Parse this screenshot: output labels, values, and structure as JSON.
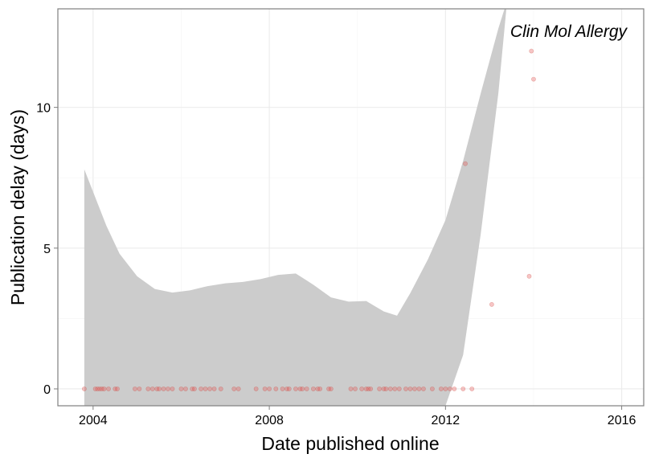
{
  "chart_data": {
    "type": "scatter",
    "title": "",
    "annotation": "Clin Mol Allergy",
    "xlabel": "Date published online",
    "ylabel": "Publication delay (days)",
    "xlim": [
      2003.2,
      2016.5
    ],
    "ylim": [
      -0.6,
      13.5
    ],
    "x_ticks": [
      2004,
      2008,
      2012,
      2016
    ],
    "y_ticks": [
      0,
      5,
      10
    ],
    "grid": true,
    "point_color": "#e8585a",
    "band_color": "#cccccc",
    "points": [
      {
        "x": 2003.8,
        "y": 0
      },
      {
        "x": 2004.05,
        "y": 0
      },
      {
        "x": 2004.1,
        "y": 0
      },
      {
        "x": 2004.15,
        "y": 0
      },
      {
        "x": 2004.2,
        "y": 0
      },
      {
        "x": 2004.25,
        "y": 0
      },
      {
        "x": 2004.35,
        "y": 0
      },
      {
        "x": 2004.5,
        "y": 0
      },
      {
        "x": 2004.55,
        "y": 0
      },
      {
        "x": 2004.95,
        "y": 0
      },
      {
        "x": 2005.05,
        "y": 0
      },
      {
        "x": 2005.25,
        "y": 0
      },
      {
        "x": 2005.35,
        "y": 0
      },
      {
        "x": 2005.45,
        "y": 0
      },
      {
        "x": 2005.5,
        "y": 0
      },
      {
        "x": 2005.6,
        "y": 0
      },
      {
        "x": 2005.7,
        "y": 0
      },
      {
        "x": 2005.8,
        "y": 0
      },
      {
        "x": 2006.0,
        "y": 0
      },
      {
        "x": 2006.1,
        "y": 0
      },
      {
        "x": 2006.25,
        "y": 0
      },
      {
        "x": 2006.3,
        "y": 0
      },
      {
        "x": 2006.45,
        "y": 0
      },
      {
        "x": 2006.55,
        "y": 0
      },
      {
        "x": 2006.65,
        "y": 0
      },
      {
        "x": 2006.75,
        "y": 0
      },
      {
        "x": 2006.9,
        "y": 0
      },
      {
        "x": 2007.2,
        "y": 0
      },
      {
        "x": 2007.3,
        "y": 0
      },
      {
        "x": 2007.7,
        "y": 0
      },
      {
        "x": 2007.9,
        "y": 0
      },
      {
        "x": 2008.0,
        "y": 0
      },
      {
        "x": 2008.15,
        "y": 0
      },
      {
        "x": 2008.3,
        "y": 0
      },
      {
        "x": 2008.4,
        "y": 0
      },
      {
        "x": 2008.45,
        "y": 0
      },
      {
        "x": 2008.6,
        "y": 0
      },
      {
        "x": 2008.7,
        "y": 0
      },
      {
        "x": 2008.75,
        "y": 0
      },
      {
        "x": 2008.85,
        "y": 0
      },
      {
        "x": 2009.0,
        "y": 0
      },
      {
        "x": 2009.1,
        "y": 0
      },
      {
        "x": 2009.15,
        "y": 0
      },
      {
        "x": 2009.35,
        "y": 0
      },
      {
        "x": 2009.4,
        "y": 0
      },
      {
        "x": 2009.85,
        "y": 0
      },
      {
        "x": 2009.95,
        "y": 0
      },
      {
        "x": 2010.1,
        "y": 0
      },
      {
        "x": 2010.2,
        "y": 0
      },
      {
        "x": 2010.25,
        "y": 0
      },
      {
        "x": 2010.3,
        "y": 0
      },
      {
        "x": 2010.5,
        "y": 0
      },
      {
        "x": 2010.6,
        "y": 0
      },
      {
        "x": 2010.65,
        "y": 0
      },
      {
        "x": 2010.75,
        "y": 0
      },
      {
        "x": 2010.85,
        "y": 0
      },
      {
        "x": 2010.95,
        "y": 0
      },
      {
        "x": 2011.1,
        "y": 0
      },
      {
        "x": 2011.2,
        "y": 0
      },
      {
        "x": 2011.3,
        "y": 0
      },
      {
        "x": 2011.4,
        "y": 0
      },
      {
        "x": 2011.5,
        "y": 0
      },
      {
        "x": 2011.7,
        "y": 0
      },
      {
        "x": 2011.9,
        "y": 0
      },
      {
        "x": 2012.0,
        "y": 0
      },
      {
        "x": 2012.1,
        "y": 0
      },
      {
        "x": 2012.2,
        "y": 0
      },
      {
        "x": 2012.4,
        "y": 0
      },
      {
        "x": 2012.6,
        "y": 0
      },
      {
        "x": 2012.45,
        "y": 8
      },
      {
        "x": 2013.05,
        "y": 3
      },
      {
        "x": 2013.9,
        "y": 4
      },
      {
        "x": 2013.95,
        "y": 12
      },
      {
        "x": 2014.0,
        "y": 11
      }
    ],
    "smooth_band": {
      "x": [
        2003.8,
        2004.0,
        2004.3,
        2004.6,
        2005.0,
        2005.4,
        2005.8,
        2006.2,
        2006.6,
        2007.0,
        2007.4,
        2007.8,
        2008.2,
        2008.6,
        2009.0,
        2009.4,
        2009.8,
        2010.2,
        2010.6,
        2010.9,
        2011.2,
        2011.6,
        2012.0,
        2012.4,
        2012.8,
        2013.2,
        2013.4
      ],
      "upper": [
        7.8,
        7.0,
        5.8,
        4.8,
        4.0,
        3.55,
        3.42,
        3.5,
        3.65,
        3.75,
        3.8,
        3.9,
        4.05,
        4.1,
        3.7,
        3.25,
        3.1,
        3.12,
        2.75,
        2.6,
        3.4,
        4.6,
        6.0,
        8.1,
        10.5,
        12.8,
        13.8
      ],
      "lower": [
        -0.6,
        -0.6,
        -0.6,
        -0.6,
        -0.6,
        -0.6,
        -0.6,
        -0.6,
        -0.6,
        -0.6,
        -0.6,
        -0.6,
        -0.6,
        -0.6,
        -0.6,
        -0.6,
        -0.6,
        -0.6,
        -0.6,
        -0.6,
        -0.6,
        -0.6,
        -0.6,
        1.2,
        5.5,
        10.5,
        13.8
      ]
    }
  }
}
